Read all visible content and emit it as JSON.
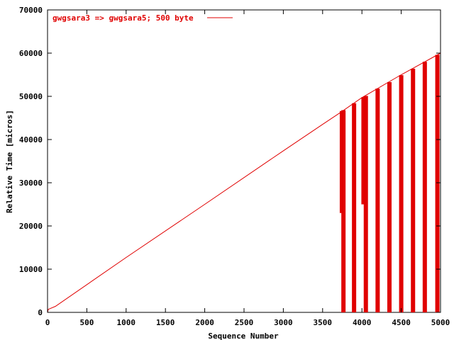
{
  "chart_data": {
    "type": "line",
    "title": "",
    "xlabel": "Sequence Number",
    "ylabel": "Relative Time [micros]",
    "xlim": [
      0,
      5000
    ],
    "ylim": [
      0,
      70000
    ],
    "x_ticks": [
      0,
      500,
      1000,
      1500,
      2000,
      2500,
      3000,
      3500,
      4000,
      4500,
      5000
    ],
    "y_ticks": [
      0,
      10000,
      20000,
      30000,
      40000,
      50000,
      60000,
      70000
    ],
    "grid": false,
    "legend_position": "top-left",
    "series": [
      {
        "name": "gwgsara3 => gwgsara5; 500 byte",
        "color": "#e00000",
        "points": [
          [
            0,
            0
          ],
          [
            10,
            700
          ],
          [
            100,
            1400
          ],
          [
            1000,
            12700
          ],
          [
            2000,
            25000
          ],
          [
            3000,
            37400
          ],
          [
            3500,
            43500
          ],
          [
            3730,
            46300
          ],
          [
            4000,
            49700
          ],
          [
            4500,
            55000
          ],
          [
            5000,
            60000
          ]
        ]
      }
    ],
    "spike_bars": [
      {
        "x": 3745,
        "y_from": 23000,
        "y_to": 46600
      },
      {
        "x": 3765,
        "y_from": 0,
        "y_to": 46800
      },
      {
        "x": 3900,
        "y_from": 0,
        "y_to": 48400
      },
      {
        "x": 4020,
        "y_from": 25000,
        "y_to": 49800
      },
      {
        "x": 4050,
        "y_from": 0,
        "y_to": 50100
      },
      {
        "x": 4200,
        "y_from": 0,
        "y_to": 51800
      },
      {
        "x": 4350,
        "y_from": 0,
        "y_to": 53300
      },
      {
        "x": 4500,
        "y_from": 0,
        "y_to": 54900
      },
      {
        "x": 4650,
        "y_from": 0,
        "y_to": 56400
      },
      {
        "x": 4800,
        "y_from": 0,
        "y_to": 58000
      },
      {
        "x": 4960,
        "y_from": 0,
        "y_to": 59600
      }
    ]
  }
}
